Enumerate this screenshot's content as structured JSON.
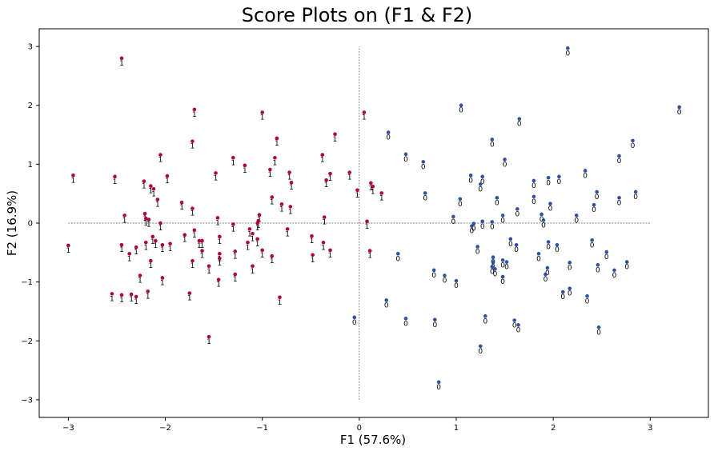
{
  "chart_data": {
    "type": "scatter",
    "title": "Score Plots on (F1 & F2)",
    "xlabel": "F1 (57.6%)",
    "ylabel": "F2 (16.9%)",
    "xlim": [
      -3.3,
      3.6
    ],
    "ylim": [
      -3.3,
      3.3
    ],
    "xticks": [
      -3,
      -2,
      -1,
      0,
      1,
      2,
      3
    ],
    "yticks": [
      -3,
      -2,
      -1,
      0,
      1,
      2,
      3
    ],
    "grid": false,
    "reference_lines": {
      "horizontal": {
        "y": 0,
        "x_from": -3,
        "x_to": 3
      },
      "vertical": {
        "x": 0,
        "y_from": -3,
        "y_to": 3
      },
      "style": "dashed"
    },
    "series": [
      {
        "label": "1",
        "color": "#b00040",
        "points": [
          [
            -2.45,
            2.8
          ],
          [
            -1.7,
            1.93
          ],
          [
            -1.0,
            1.88
          ],
          [
            0.05,
            1.88
          ],
          [
            -0.25,
            1.51
          ],
          [
            -0.85,
            1.44
          ],
          [
            -1.72,
            1.39
          ],
          [
            -2.05,
            1.16
          ],
          [
            -0.38,
            1.16
          ],
          [
            -1.3,
            1.11
          ],
          [
            -0.87,
            1.11
          ],
          [
            -1.18,
            0.98
          ],
          [
            -2.95,
            0.81
          ],
          [
            -2.52,
            0.79
          ],
          [
            -1.98,
            0.8
          ],
          [
            -1.48,
            0.85
          ],
          [
            -0.92,
            0.91
          ],
          [
            -0.72,
            0.86
          ],
          [
            -0.3,
            0.84
          ],
          [
            -0.1,
            0.86
          ],
          [
            -0.34,
            0.73
          ],
          [
            -0.7,
            0.69
          ],
          [
            -2.22,
            0.71
          ],
          [
            -2.15,
            0.63
          ],
          [
            -2.12,
            0.58
          ],
          [
            -2.08,
            0.4
          ],
          [
            -1.83,
            0.35
          ],
          [
            -1.72,
            0.25
          ],
          [
            -0.9,
            0.44
          ],
          [
            -0.8,
            0.32
          ],
          [
            -0.71,
            0.28
          ],
          [
            0.12,
            0.68
          ],
          [
            0.14,
            0.62
          ],
          [
            0.23,
            0.51
          ],
          [
            -0.02,
            0.56
          ],
          [
            0.08,
            0.03
          ],
          [
            -2.42,
            0.13
          ],
          [
            -2.21,
            0.16
          ],
          [
            -2.2,
            0.08
          ],
          [
            -2.17,
            0.06
          ],
          [
            -2.05,
            0.0
          ],
          [
            -1.46,
            0.09
          ],
          [
            -1.3,
            -0.02
          ],
          [
            -1.03,
            0.14
          ],
          [
            -1.04,
            0.04
          ],
          [
            -1.05,
            0.0
          ],
          [
            -0.36,
            0.1
          ],
          [
            -1.13,
            -0.1
          ],
          [
            -1.1,
            -0.18
          ],
          [
            -1.05,
            -0.27
          ],
          [
            -1.15,
            -0.33
          ],
          [
            -0.74,
            -0.1
          ],
          [
            -0.49,
            -0.22
          ],
          [
            -0.37,
            -0.33
          ],
          [
            -0.3,
            -0.46
          ],
          [
            -3.0,
            -0.38
          ],
          [
            -2.45,
            -0.37
          ],
          [
            -2.37,
            -0.52
          ],
          [
            -2.3,
            -0.41
          ],
          [
            -2.2,
            -0.33
          ],
          [
            -2.1,
            -0.3
          ],
          [
            -2.03,
            -0.37
          ],
          [
            -1.95,
            -0.35
          ],
          [
            -1.8,
            -0.2
          ],
          [
            -1.7,
            -0.12
          ],
          [
            -1.65,
            -0.3
          ],
          [
            -1.62,
            -0.3
          ],
          [
            -1.44,
            -0.23
          ],
          [
            -1.44,
            -0.52
          ],
          [
            -1.44,
            -0.6
          ],
          [
            -1.55,
            -0.73
          ],
          [
            -1.28,
            -0.48
          ],
          [
            -1.1,
            -0.73
          ],
          [
            -1.0,
            -0.46
          ],
          [
            -0.9,
            -0.56
          ],
          [
            -0.48,
            -0.54
          ],
          [
            -1.72,
            -0.64
          ],
          [
            -1.62,
            -0.47
          ],
          [
            -2.13,
            -0.23
          ],
          [
            -2.15,
            -0.64
          ],
          [
            -2.26,
            -0.89
          ],
          [
            -2.03,
            -0.93
          ],
          [
            -1.45,
            -0.96
          ],
          [
            -1.28,
            -0.87
          ],
          [
            -1.75,
            -1.19
          ],
          [
            -2.18,
            -1.16
          ],
          [
            -2.3,
            -1.25
          ],
          [
            -2.35,
            -1.21
          ],
          [
            -2.45,
            -1.22
          ],
          [
            -2.55,
            -1.2
          ],
          [
            -0.82,
            -1.26
          ],
          [
            -1.55,
            -1.93
          ],
          [
            0.11,
            -0.47
          ]
        ]
      },
      {
        "label": "0",
        "color": "#3050a0",
        "points": [
          [
            2.15,
            2.97
          ],
          [
            1.05,
            2.0
          ],
          [
            3.3,
            1.97
          ],
          [
            1.65,
            1.77
          ],
          [
            0.3,
            1.54
          ],
          [
            1.37,
            1.42
          ],
          [
            2.82,
            1.4
          ],
          [
            0.48,
            1.17
          ],
          [
            1.5,
            1.08
          ],
          [
            0.66,
            1.04
          ],
          [
            2.68,
            1.14
          ],
          [
            2.33,
            0.89
          ],
          [
            1.15,
            0.81
          ],
          [
            1.27,
            0.79
          ],
          [
            1.8,
            0.72
          ],
          [
            1.95,
            0.77
          ],
          [
            2.06,
            0.79
          ],
          [
            1.25,
            0.66
          ],
          [
            2.45,
            0.53
          ],
          [
            2.85,
            0.53
          ],
          [
            1.63,
            0.24
          ],
          [
            0.68,
            0.51
          ],
          [
            1.04,
            0.41
          ],
          [
            1.42,
            0.43
          ],
          [
            1.8,
            0.45
          ],
          [
            1.97,
            0.33
          ],
          [
            2.42,
            0.31
          ],
          [
            2.68,
            0.43
          ],
          [
            0.97,
            0.11
          ],
          [
            1.18,
            -0.01
          ],
          [
            1.16,
            -0.05
          ],
          [
            1.27,
            0.03
          ],
          [
            1.37,
            0.02
          ],
          [
            1.48,
            0.13
          ],
          [
            1.88,
            0.15
          ],
          [
            1.9,
            0.05
          ],
          [
            2.24,
            0.13
          ],
          [
            1.22,
            -0.4
          ],
          [
            1.56,
            -0.27
          ],
          [
            1.62,
            -0.37
          ],
          [
            1.95,
            -0.32
          ],
          [
            2.04,
            -0.37
          ],
          [
            2.4,
            -0.29
          ],
          [
            2.55,
            -0.49
          ],
          [
            0.4,
            -0.52
          ],
          [
            1.38,
            -0.58
          ],
          [
            1.38,
            -0.66
          ],
          [
            1.37,
            -0.74
          ],
          [
            1.4,
            -0.78
          ],
          [
            1.48,
            -0.63
          ],
          [
            1.52,
            -0.66
          ],
          [
            1.85,
            -0.52
          ],
          [
            2.17,
            -0.67
          ],
          [
            2.46,
            -0.71
          ],
          [
            2.76,
            -0.66
          ],
          [
            2.63,
            -0.8
          ],
          [
            1.94,
            -0.76
          ],
          [
            1.92,
            -0.87
          ],
          [
            1.48,
            -0.91
          ],
          [
            0.77,
            -0.8
          ],
          [
            0.88,
            -0.89
          ],
          [
            1.0,
            -0.98
          ],
          [
            0.28,
            -1.31
          ],
          [
            2.17,
            -1.11
          ],
          [
            2.1,
            -1.17
          ],
          [
            2.35,
            -1.24
          ],
          [
            -0.05,
            -1.6
          ],
          [
            0.48,
            -1.62
          ],
          [
            0.78,
            -1.64
          ],
          [
            1.3,
            -1.58
          ],
          [
            1.6,
            -1.65
          ],
          [
            1.64,
            -1.73
          ],
          [
            2.47,
            -1.77
          ],
          [
            1.25,
            -2.09
          ],
          [
            0.82,
            -2.7
          ]
        ]
      }
    ]
  }
}
